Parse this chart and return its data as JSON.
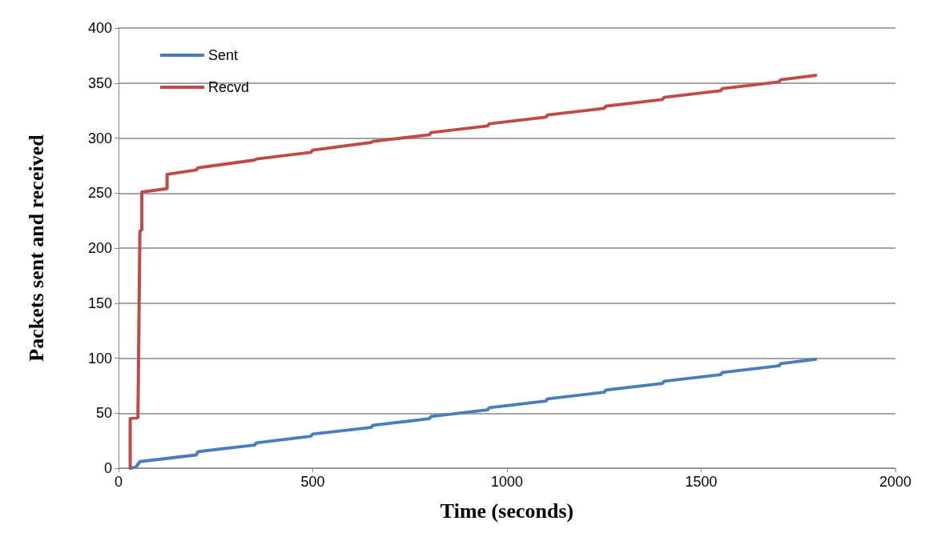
{
  "chart_data": {
    "type": "line",
    "xlabel": "Time (seconds)",
    "ylabel": "Packets sent and received",
    "xlim": [
      0,
      2000
    ],
    "xticks": [
      0,
      500,
      1000,
      1500,
      2000
    ],
    "ylim": [
      0,
      400
    ],
    "yticks": [
      0,
      50,
      100,
      150,
      200,
      250,
      300,
      350,
      400
    ],
    "grid": "y",
    "legend": "top left",
    "line_style": "solid",
    "marker": "none",
    "series": [
      {
        "name": "Sent",
        "color": "#4a7ebb",
        "x": [
          30,
          45,
          55,
          200,
          205,
          350,
          355,
          495,
          500,
          650,
          655,
          800,
          805,
          950,
          955,
          1100,
          1105,
          1250,
          1255,
          1400,
          1405,
          1550,
          1555,
          1700,
          1705,
          1795
        ],
        "values": [
          0,
          1,
          6,
          12,
          15,
          21,
          23,
          29,
          31,
          37,
          39,
          45,
          47,
          53,
          55,
          61,
          63,
          69,
          71,
          77,
          79,
          85,
          87,
          93,
          95,
          99
        ]
      },
      {
        "name": "Recvd",
        "color": "#be4b48",
        "x": [
          30,
          30,
          50,
          55,
          60,
          60,
          125,
          125,
          200,
          205,
          350,
          355,
          495,
          500,
          650,
          655,
          800,
          805,
          950,
          955,
          1100,
          1105,
          1250,
          1255,
          1400,
          1405,
          1550,
          1555,
          1700,
          1705,
          1795
        ],
        "values": [
          0,
          45,
          46,
          215,
          217,
          251,
          254,
          267,
          271,
          273,
          280,
          281,
          287,
          289,
          296,
          297,
          303,
          305,
          311,
          313,
          319,
          321,
          327,
          329,
          335,
          337,
          343,
          345,
          351,
          353,
          357
        ]
      }
    ]
  }
}
